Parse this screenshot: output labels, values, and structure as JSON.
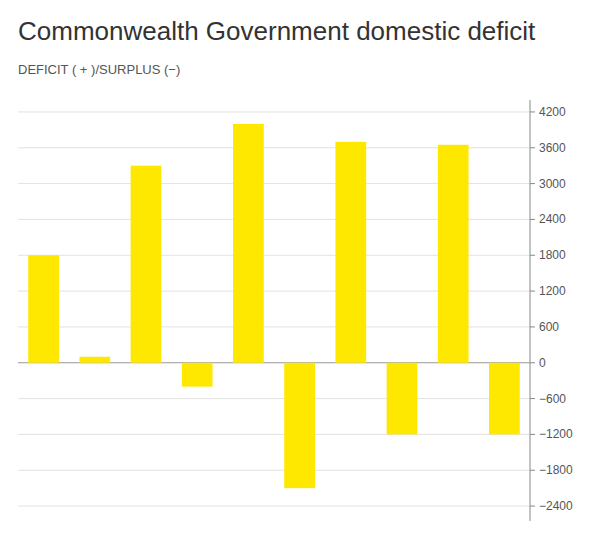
{
  "chart_data": {
    "type": "bar",
    "title": "Commonwealth Government domestic deficit",
    "subtitle": "DEFICIT ( + )/SURPLUS (−)",
    "categories": [
      null,
      null,
      null,
      null,
      null,
      null,
      null,
      null,
      null,
      null
    ],
    "values": [
      1800,
      100,
      3300,
      -400,
      4000,
      -2100,
      3700,
      -1200,
      3650,
      -1200
    ],
    "color": "#FFE800",
    "ylim": [
      -2650,
      4400
    ],
    "yticks": [
      {
        "value": -2400,
        "label": "−2400"
      },
      {
        "value": -1800,
        "label": "−1800"
      },
      {
        "value": -1200,
        "label": "−1200"
      },
      {
        "value": -600,
        "label": "−600"
      },
      0,
      600,
      1200,
      1800,
      2400,
      3000,
      3600,
      4200
    ],
    "grid": true,
    "tick_labels": "y"
  }
}
